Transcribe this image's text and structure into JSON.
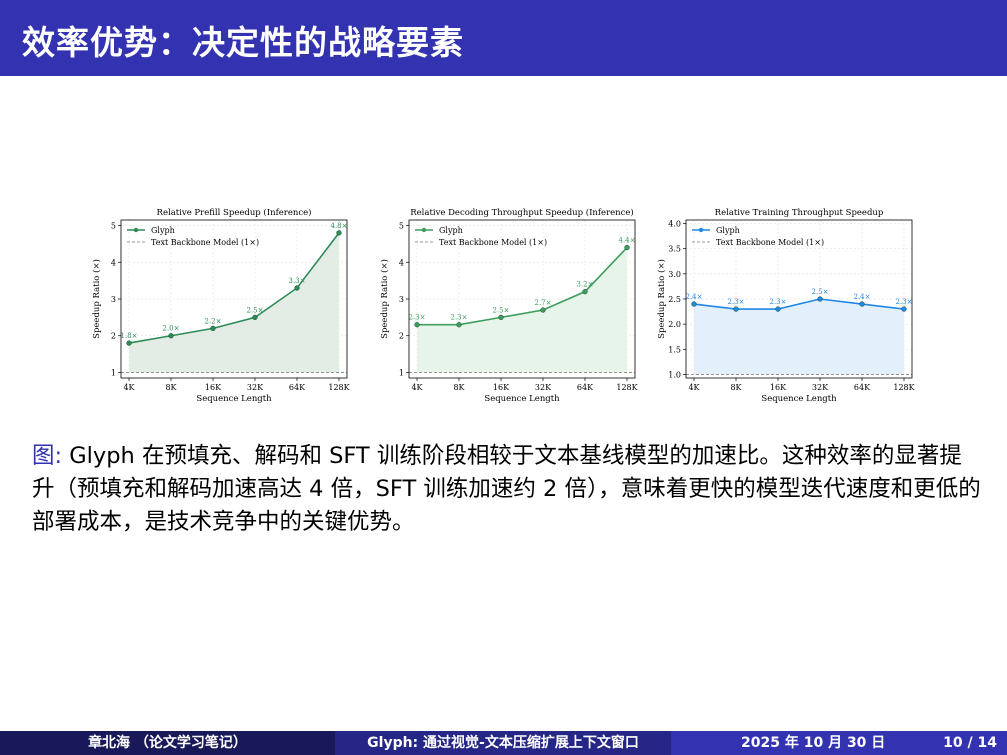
{
  "slide": {
    "title": "效率优势：决定性的战略要素",
    "caption_label": "图:",
    "caption_text": " Glyph 在预填充、解码和 SFT 训练阶段相较于文本基线模型的加速比。这种效率的显著提升（预填充和解码加速高达 4 倍，SFT 训练加速约 2 倍），意味着更快的模型迭代速度和更低的部署成本，是技术竞争中的关键优势。"
  },
  "footer": {
    "author": "章北海 （论文学习笔记）",
    "talk": "Glyph: 通过视觉-文本压缩扩展上下文窗口",
    "date": "2025 年 10 月 30 日",
    "page": "10 / 14"
  },
  "colors": {
    "accent": "#3333b2",
    "green": "#2e8b57",
    "blue": "#1f88e5"
  },
  "chart_data": [
    {
      "type": "line",
      "title": "Relative Prefill Speedup (Inference)",
      "xlabel": "Sequence Length",
      "ylabel": "Speedup Ratio (×)",
      "categories": [
        "4K",
        "8K",
        "16K",
        "32K",
        "64K",
        "128K"
      ],
      "series": [
        {
          "name": "Glyph",
          "values": [
            1.8,
            2.0,
            2.2,
            2.5,
            3.3,
            4.8
          ]
        }
      ],
      "data_labels": [
        "1.8×",
        "2.0×",
        "2.2×",
        "2.5×",
        "3.3×",
        "4.8×"
      ],
      "baseline": {
        "name": "Text Backbone Model (1×)",
        "value": 1
      },
      "ylim": [
        0.85,
        5.15
      ],
      "yticks": [
        1,
        2,
        3,
        4,
        5
      ],
      "ytick_labels": [
        "1",
        "2",
        "3",
        "4",
        "5"
      ],
      "color": "#2e8b57",
      "fill": "#e3ede6",
      "grid": true,
      "legend": "top-left"
    },
    {
      "type": "line",
      "title": "Relative Decoding Throughput Speedup (Inference)",
      "xlabel": "Sequence Length",
      "ylabel": "Speedup Ratio (×)",
      "categories": [
        "4K",
        "8K",
        "16K",
        "32K",
        "64K",
        "128K"
      ],
      "series": [
        {
          "name": "Glyph",
          "values": [
            2.3,
            2.3,
            2.5,
            2.7,
            3.2,
            4.4
          ]
        }
      ],
      "data_labels": [
        "2.3×",
        "2.3×",
        "2.5×",
        "2.7×",
        "3.2×",
        "4.4×"
      ],
      "baseline": {
        "name": "Text Backbone Model (1×)",
        "value": 1
      },
      "ylim": [
        0.85,
        5.15
      ],
      "yticks": [
        1,
        2,
        3,
        4,
        5
      ],
      "ytick_labels": [
        "1",
        "2",
        "3",
        "4",
        "5"
      ],
      "color": "#3c9d5d",
      "fill": "#e6f4ea",
      "grid": true,
      "legend": "top-left"
    },
    {
      "type": "line",
      "title": "Relative Training Throughput Speedup",
      "xlabel": "Sequence Length",
      "ylabel": "Speedup Ratio (×)",
      "categories": [
        "4K",
        "8K",
        "16K",
        "32K",
        "64K",
        "128K"
      ],
      "series": [
        {
          "name": "Glyph",
          "values": [
            2.4,
            2.3,
            2.3,
            2.5,
            2.4,
            2.3
          ]
        }
      ],
      "data_labels": [
        "2.4×",
        "2.3×",
        "2.3×",
        "2.5×",
        "2.4×",
        "2.3×"
      ],
      "baseline": {
        "name": "Text Backbone Model (1×)",
        "value": 1
      },
      "ylim": [
        0.93,
        4.07
      ],
      "yticks": [
        1.0,
        1.5,
        2.0,
        2.5,
        3.0,
        3.5,
        4.0
      ],
      "ytick_labels": [
        "1.0",
        "1.5",
        "2.0",
        "2.5",
        "3.0",
        "3.5",
        "4.0"
      ],
      "color": "#1f88e5",
      "fill": "#e3f0fc",
      "grid": true,
      "legend": "top-left"
    }
  ]
}
